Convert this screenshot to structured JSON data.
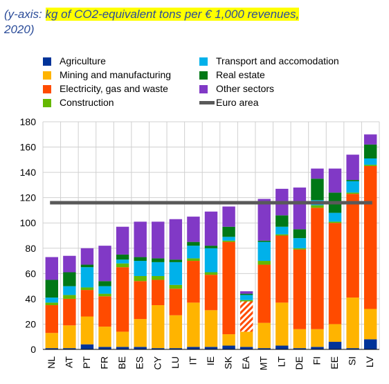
{
  "title": {
    "prefix": "(y-axis: ",
    "highlight": "kg of CO2-equivalent tons per € 1,000 revenues,",
    "line2": "2020)"
  },
  "legend": [
    {
      "name": "Agriculture",
      "color": "#003399"
    },
    {
      "name": "Mining and manufacturing",
      "color": "#ffb400"
    },
    {
      "name": "Electricity, gas and waste",
      "color": "#ff4b00"
    },
    {
      "name": "Construction",
      "color": "#65b800"
    },
    {
      "name": "Transport and accomodation",
      "color": "#00b1ea"
    },
    {
      "name": "Real estate",
      "color": "#007816"
    },
    {
      "name": "Other sectors",
      "color": "#8139c6"
    },
    {
      "name": "Euro area",
      "color": "#595959"
    }
  ],
  "chart_data": {
    "type": "bar",
    "stacked": true,
    "ylim": [
      0,
      180
    ],
    "yticks": [
      0,
      20,
      40,
      60,
      80,
      100,
      120,
      140,
      160,
      180
    ],
    "grid": true,
    "categories": [
      "NL",
      "AT",
      "PT",
      "FR",
      "BE",
      "ES",
      "CY",
      "LU",
      "IT",
      "IE",
      "SK",
      "EA",
      "MT",
      "LT",
      "DE",
      "FI",
      "EE",
      "SI",
      "LV"
    ],
    "series": [
      {
        "name": "Agriculture",
        "color": "#003399",
        "values": [
          1,
          1,
          4,
          2,
          2,
          2,
          1,
          1,
          2,
          2,
          3,
          2,
          1,
          3,
          1,
          2,
          6,
          1,
          8
        ]
      },
      {
        "name": "Mining and manufacturing",
        "color": "#ffb400",
        "values": [
          12,
          18,
          22,
          16,
          12,
          22,
          34,
          26,
          35,
          29,
          9,
          12,
          20,
          34,
          15,
          14,
          14,
          40,
          24
        ]
      },
      {
        "name": "Electricity, gas and waste",
        "color": "#ff4b00",
        "values": [
          22,
          21,
          21,
          24,
          51,
          30,
          20,
          21,
          33,
          28,
          73,
          24,
          46,
          53,
          63,
          96,
          80,
          82,
          113
        ]
      },
      {
        "name": "Construction",
        "color": "#65b800",
        "values": [
          2,
          3,
          2,
          2,
          3,
          4,
          3,
          3,
          2,
          2,
          1,
          1,
          3,
          1,
          1,
          2,
          1,
          1,
          1
        ]
      },
      {
        "name": "Transport and accomodation",
        "color": "#00b1ea",
        "values": [
          4,
          7,
          16,
          6,
          3,
          12,
          11,
          18,
          10,
          19,
          3,
          4,
          15,
          6,
          8,
          4,
          7,
          9,
          5
        ]
      },
      {
        "name": "Real estate",
        "color": "#007816",
        "values": [
          14,
          11,
          2,
          4,
          4,
          3,
          3,
          2,
          3,
          2,
          8,
          1,
          1,
          9,
          7,
          17,
          16,
          1,
          11
        ]
      },
      {
        "name": "Other sectors",
        "color": "#8139c6",
        "values": [
          18,
          13,
          13,
          28,
          22,
          28,
          29,
          32,
          20,
          27,
          16,
          2,
          33,
          21,
          33,
          8,
          19,
          20,
          8
        ]
      }
    ],
    "euro_area_line": {
      "name": "Euro area",
      "color": "#595959",
      "value": 116
    },
    "highlighted_category": "EA"
  }
}
